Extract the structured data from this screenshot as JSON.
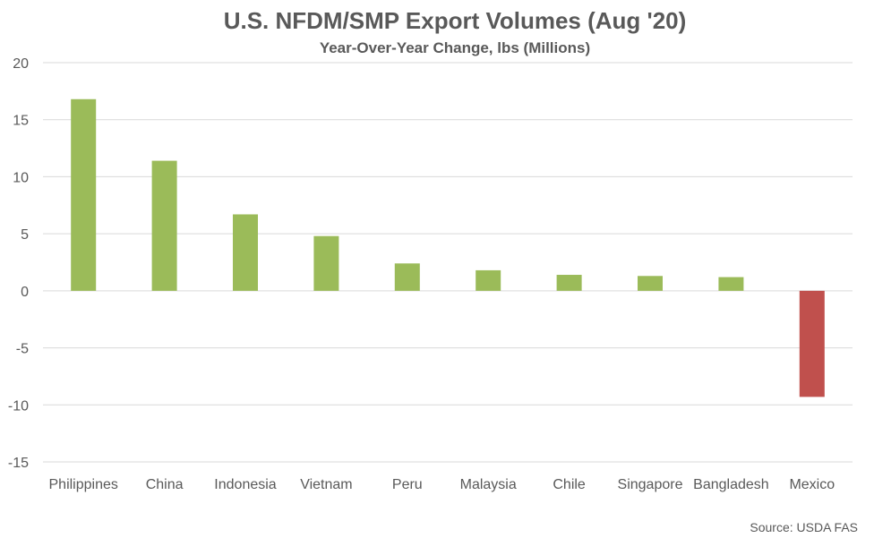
{
  "chart_data": {
    "type": "bar",
    "title": "U.S. NFDM/SMP Export Volumes (Aug '20)",
    "subtitle": "Year-Over-Year Change, lbs (Millions)",
    "categories": [
      "Philippines",
      "China",
      "Indonesia",
      "Vietnam",
      "Peru",
      "Malaysia",
      "Chile",
      "Singapore",
      "Bangladesh",
      "Mexico"
    ],
    "values": [
      16.8,
      11.4,
      6.7,
      4.8,
      2.4,
      1.8,
      1.4,
      1.3,
      1.2,
      -9.3
    ],
    "ylim": [
      -15,
      20
    ],
    "yticks": [
      -15,
      -10,
      -5,
      0,
      5,
      10,
      15,
      20
    ],
    "grid": true,
    "colors": {
      "positive": "#9BBB59",
      "negative": "#C0504D",
      "grid": "#D9D9D9",
      "text": "#595959"
    },
    "source": "Source: USDA FAS"
  }
}
